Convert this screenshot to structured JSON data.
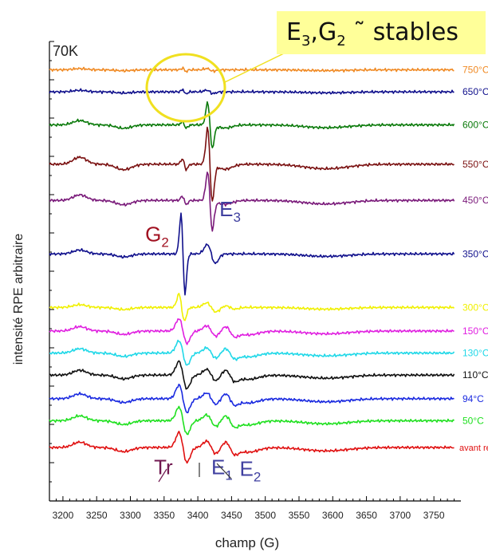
{
  "chart_data": {
    "type": "line",
    "title": "",
    "xlabel": "champ (G)",
    "ylabel": "intensité RPE arbitraire",
    "xlim": [
      3180,
      3790
    ],
    "xticks": [
      3200,
      3250,
      3300,
      3350,
      3400,
      3450,
      3500,
      3550,
      3600,
      3650,
      3700,
      3750
    ],
    "temperature_label": "70K",
    "grid": false,
    "legend": "labels at right end of each trace",
    "series": [
      {
        "name": "750°C",
        "color": "#f08a24",
        "offset": 12.7,
        "scale": 0.25,
        "spectrum": "stable"
      },
      {
        "name": "650°C",
        "color": "#10108c",
        "offset": 12.0,
        "scale": 0.32,
        "spectrum": "stable"
      },
      {
        "name": "600°C",
        "color": "#0a7a0a",
        "offset": 10.95,
        "scale": 0.9,
        "spectrum": "E3"
      },
      {
        "name": "550°C",
        "color": "#7a1010",
        "offset": 9.7,
        "scale": 1.45,
        "spectrum": "E3"
      },
      {
        "name": "450°C",
        "color": "#7a1a7a",
        "offset": 8.55,
        "scale": 1.15,
        "spectrum": "E3"
      },
      {
        "name": "350°C",
        "color": "#10108c",
        "offset": 6.85,
        "scale": 1.0,
        "spectrum": "G2"
      },
      {
        "name": "300°C",
        "color": "#f0f000",
        "offset": 5.15,
        "scale": 0.8,
        "spectrum": "mixed"
      },
      {
        "name": "150°C",
        "color": "#e020e0",
        "offset": 4.4,
        "scale": 0.9,
        "spectrum": "E12"
      },
      {
        "name": "130°C",
        "color": "#20d8e8",
        "offset": 3.7,
        "scale": 0.9,
        "spectrum": "E12"
      },
      {
        "name": "110°C",
        "color": "#111111",
        "offset": 3.0,
        "scale": 1.0,
        "spectrum": "E12"
      },
      {
        "name": "94°C",
        "color": "#1a2ae0",
        "offset": 2.25,
        "scale": 1.0,
        "spectrum": "E12"
      },
      {
        "name": "50°C",
        "color": "#20e020",
        "offset": 1.55,
        "scale": 1.0,
        "spectrum": "E12"
      },
      {
        "name": "avant recuit",
        "color": "#e01010",
        "offset": 0.7,
        "scale": 1.1,
        "spectrum": "E12"
      }
    ],
    "annotations": [
      {
        "text": "G",
        "sub": "2",
        "color": "#a01020",
        "x": 3322,
        "y": 7.25
      },
      {
        "text": "E",
        "sub": "3",
        "color": "#4040a0",
        "x": 3432,
        "y": 8.05
      },
      {
        "text": "Tr",
        "color": "#701850",
        "x": 3335,
        "y": -0.15
      },
      {
        "text": "E",
        "sub": "1",
        "color": "#4040a0",
        "x": 3420,
        "y": -0.15
      },
      {
        "text": "E",
        "sub": "2",
        "color": "#4040a0",
        "x": 3462,
        "y": -0.2
      }
    ],
    "callout": {
      "text": "E3,G2 ˜ stables",
      "main1": "E",
      "sub1": "3",
      "sep": ",G",
      "sub2": "2",
      "rest": " ˜ stables",
      "background": "#ffff99",
      "highlight_color": "#f0e020"
    }
  }
}
